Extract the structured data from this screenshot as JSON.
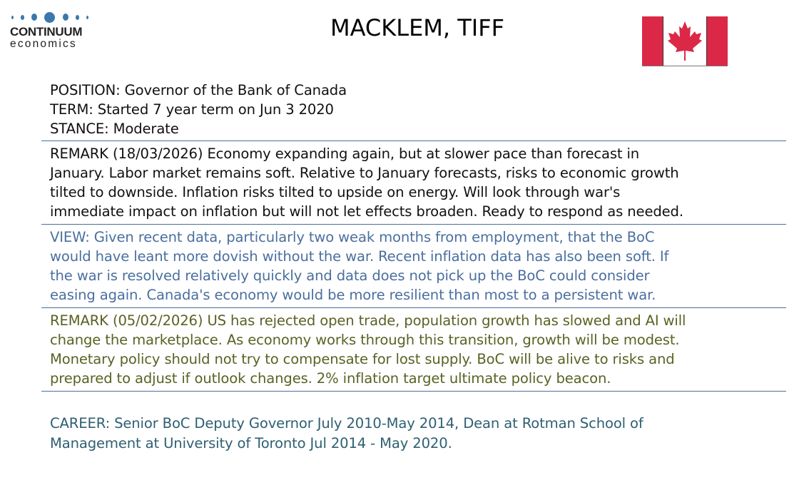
{
  "logo": {
    "brand": "CONTINUUM",
    "sub": "economics"
  },
  "header": {
    "title": "MACKLEM, TIFF",
    "flag_icon": "canada-flag-icon",
    "flag_colors": {
      "red": "#dc2847",
      "white": "#ffffff"
    }
  },
  "profile": {
    "lines": [
      "POSITION: Governor of the Bank of Canada",
      "TERM: Started 7 year term on Jun 3 2020",
      "STANCE: Moderate"
    ]
  },
  "remark1": {
    "lines": [
      "REMARK (18/03/2026) Economy expanding again, but at slower pace than forecast in",
      "January. Labor market remains soft. Relative to January forecasts, risks to economic growth",
      "tilted to downside. Inflation risks tilted to upside on energy. Will look through war's",
      "immediate impact on inflation but will not let effects broaden. Ready to respond as needed."
    ]
  },
  "view": {
    "lines": [
      "VIEW: Given recent data, particularly two weak months from employment, that the BoC",
      "would have leant more dovish without the war. Recent inflation data has also been soft. If",
      "the war is resolved relatively quickly and data does not pick up the BoC could consider",
      "easing again. Canada's economy would be more resilient than most to a persistent war."
    ]
  },
  "remark2": {
    "lines": [
      "REMARK (05/02/2026) US has rejected open trade, population growth has slowed and AI will",
      "change the marketplace. As economy works through this transition, growth will be modest.",
      "Monetary policy should not try to compensate for lost supply. BoC will be alive to risks and",
      "prepared to adjust if outlook changes. 2% inflation target ultimate policy beacon."
    ]
  },
  "career": {
    "lines": [
      "CAREER: Senior BoC Deputy Governor July 2010-May 2014, Dean at Rotman School of",
      "Management at University of Toronto Jul 2014 - May 2020."
    ]
  },
  "colors": {
    "text": "#111111",
    "view": "#4a6f9f",
    "remark2": "#5a6224",
    "career": "#2f5f73",
    "rule": "#4a6f9c",
    "logo_dots": "#3a78ad"
  }
}
